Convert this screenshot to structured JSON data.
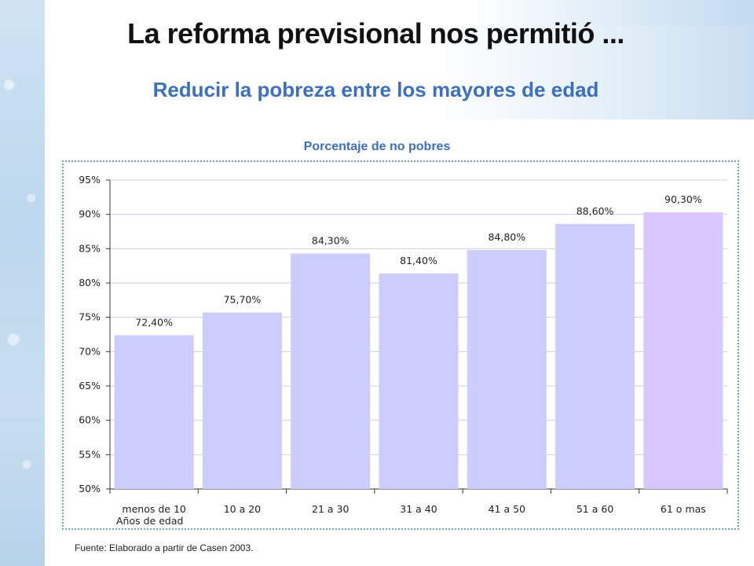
{
  "title": "La reforma previsional nos permitió ...",
  "subtitle": "Reducir la pobreza entre los mayores de edad",
  "source": "Fuente: Elaborado  a partir de Casen 2003.",
  "colors": {
    "bar": "#ccccff",
    "bar_highlight": "#d9c6ff",
    "gridline": "#cfcfe0",
    "axis": "#333333"
  },
  "chart_data": {
    "type": "bar",
    "title": "Porcentaje de no pobres",
    "categories": [
      "menos de 10",
      "10 a 20",
      "21 a 30",
      "31 a 40",
      "41 a 50",
      "51 a 60",
      "61 o mas"
    ],
    "values": [
      72.4,
      75.7,
      84.3,
      81.4,
      84.8,
      88.6,
      90.3
    ],
    "data_labels": [
      "72,40%",
      "75,70%",
      "84,30%",
      "81,40%",
      "84,80%",
      "88,60%",
      "90,30%"
    ],
    "xlabel": "Años de edad",
    "ylabel": "",
    "ylim": [
      50,
      95
    ],
    "yticks": [
      "50%",
      "55%",
      "60%",
      "65%",
      "70%",
      "75%",
      "80%",
      "85%",
      "90%",
      "95%"
    ],
    "highlight_index": 6,
    "grid": true
  }
}
